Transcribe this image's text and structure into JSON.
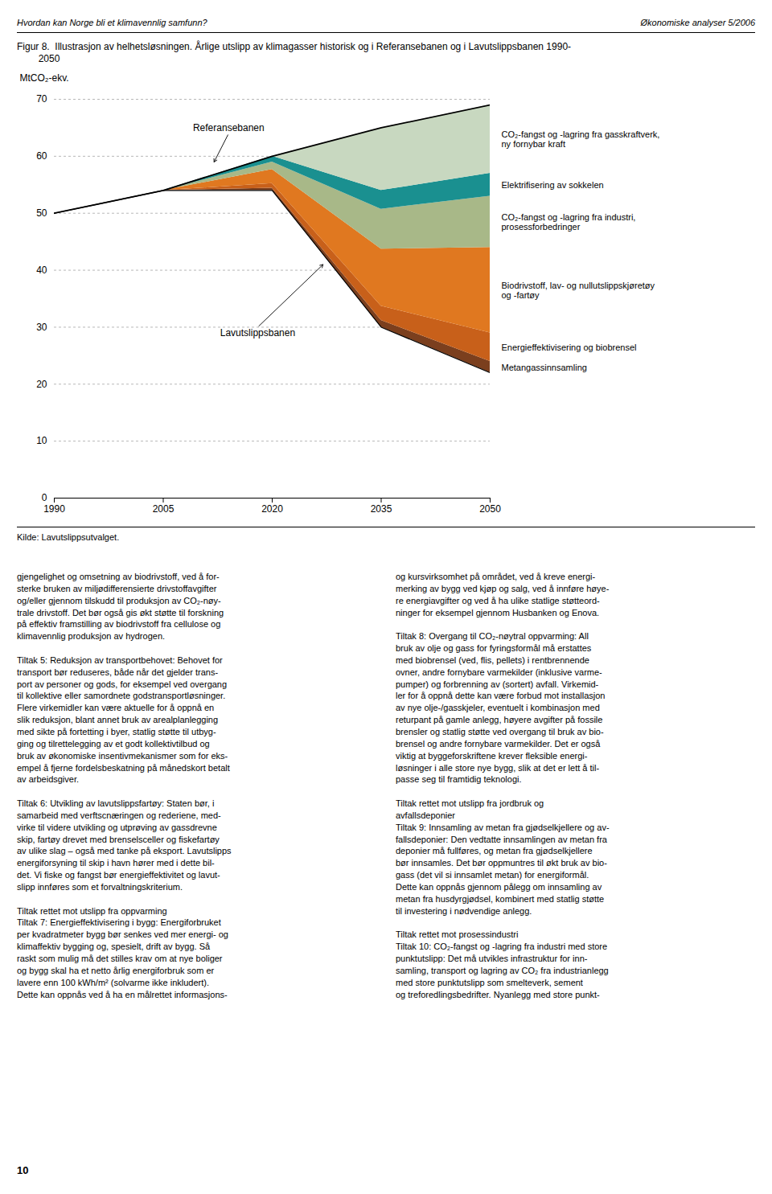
{
  "header_left": "Hvordan kan Norge bli et klimavennlig samfunn?",
  "header_right": "Økonomiske analyser 5/2006",
  "source": "Kilde: Lavutslippsutvalget.",
  "page_number": "10",
  "body_left_col": "gjengelighet og omsetning av biodrivstoff, ved å for-\nsterke bruken av miljødifferensierte drivstoffavgifter\nog/eller gjennom tilskudd til produksjon av CO₂-nøy-\ntrale drivstoff. Det bør også gis økt støtte til forskning\npå effektiv framstilling av biodrivstoff fra cellulose og\nklimavennlig produksjon av hydrogen.\n\nTiltak 5: Reduksjon av transportbehovet: Behovet for\ntransport bør reduseres, både når det gjelder trans-\nport av personer og gods, for eksempel ved overgang\ntil kollektive eller samordnete godstransportløsninger.\nFlere virkemidler kan være aktuelle for å oppnå en\nslik reduksjon, blant annet bruk av arealplanlegging\nmed sikte på fortetting i byer, statlig støtte til utbyg-\nging og tilrettelegging av et godt kollektivtilbud og\nbruk av økonomiske insentivmekanismer som for eks-\nempel å fjerne fordelsbeskatning på månedskort betalt\nav arbeidsgiver.\n\nTiltak 6: Utvikling av lavutslippsfartøy: Staten bør, i\nsamarbeid med verftscnæringen og rederiene, med-\nvirke til videre utvikling og utprøving av gassdrevne\nskip, fartøy drevet med brenselsceller og fiskefartøy\nav ulike slag – også med tanke på eksport. Lavutslipps\nenergiforsyning til skip i havn hører med i dette bil-\ndet. Vi fiske og fangst bør energieffektivitet og lavut-\nslipp innføres som et forvaltningskriterium.\n\nTiltak rettet mot utslipp fra oppvarming\nTiltak 7: Energieffektivisering i bygg: Energiforbruket\nper kvadratmeter bygg bør senkes ved mer energi- og\nklimaffektiv bygging og, spesielt, drift av bygg. Så\nraskt som mulig må det stilles krav om at nye boliger\nog bygg skal ha et netto årlig energiforbruk som er\nlavere enn 100 kWh/m² (solvarme ikke inkludert).\nDette kan oppnås ved å ha en målrettet informasjons-",
  "body_right_col": "og kursvirksomhet på området, ved å kreve energi-\nmerking av bygg ved kjøp og salg, ved å innføre høye-\nre energiavgifter og ved å ha ulike statlige støtteord-\nninger for eksempel gjennom Husbanken og Enova.\n\nTiltak 8: Overgang til CO₂-nøytral oppvarming: All\nbruk av olje og gass for fyringsformål må erstattes\nmed biobrensel (ved, flis, pellets) i rentbrennende\novner, andre fornybare varmekilder (inklusive varme-\npumper) og forbrenning av (sortert) avfall. Virkemid-\nler for å oppnå dette kan være forbud mot installasjon\nav nye olje-/gasskjeler, eventuelt i kombinasjon med\nreturpant på gamle anlegg, høyere avgifter på fossile\nbrensler og statlig støtte ved overgang til bruk av bio-\nbrensel og andre fornybare varmekilder. Det er også\nviktig at byggeforskriftene krever fleksible energi-\nløsninger i alle store nye bygg, slik at det er lett å til-\npasse seg til framtidig teknologi.\n\nTiltak rettet mot utslipp fra jordbruk og\navfallsdeponier\nTiltak 9: Innsamling av metan fra gjødselkjellere og av-\nfallsdeponier: Den vedtatte innsamlingen av metan fra\ndeponier må fullføres, og metan fra gjødselkjellere\nbør innsamles. Det bør oppmuntres til økt bruk av bio-\ngass (det vil si innsamlet metan) for energiformål.\nDette kan oppnås gjennom pålegg om innsamling av\nmetan fra husdyrgjødsel, kombinert med statlig støtte\ntil investering i nødvendige anlegg.\n\nTiltak rettet mot prosessindustri\nTiltak 10: CO₂-fangst og -lagring fra industri med store\npunktutslipp: Det må utvikles infrastruktur for inn-\nsamling, transport og lagring av CO₂ fra industrianlegg\nmed store punktutslipp som smelteverk, sement\nog treforedlingsbedrifter. Nyanlegg med store punkt-",
  "chart_data": {
    "type": "area",
    "title": "Figur 8.  Illustrasjon av helhetsløsningen. Årlige utslipp av klimagasser historisk og i Referansebanen og i Lavutslippsbanen 1990-\n        2050",
    "ylabel": "MtCO₂-ekv.",
    "x": [
      1990,
      2005,
      2020,
      2035,
      2050
    ],
    "xlim": [
      1990,
      2050
    ],
    "xticks": [
      1990,
      2005,
      2020,
      2035,
      2050
    ],
    "ylim": [
      0,
      70
    ],
    "yticks": [
      0,
      10,
      20,
      30,
      40,
      50,
      60,
      70
    ],
    "grid": true,
    "stacked": true,
    "series": [
      {
        "name": "Referansebanen",
        "type": "line",
        "color": "black",
        "line_style": "solid",
        "values": [
          50,
          54,
          60,
          65,
          69
        ]
      },
      {
        "name": "Lavutslippsbanen",
        "type": "line",
        "color": "black",
        "line_style": "solid",
        "values": [
          50,
          54,
          54,
          30,
          22
        ]
      },
      {
        "name": "Metangassinnsamling",
        "type": "area",
        "color": "#7B3F1E",
        "values": [
          0,
          0,
          0.4,
          1.2,
          2.0
        ]
      },
      {
        "name": "Energieffektivisering og biobrensel",
        "type": "area",
        "color": "#C8601A",
        "values": [
          0,
          0,
          0.8,
          2.5,
          5.0
        ]
      },
      {
        "name": "Biodrivstoff, lav- og nullutslippskjøretøy\nog -fartøy",
        "type": "area",
        "color": "#E07820",
        "values": [
          0,
          0,
          2.5,
          10.0,
          15.0
        ]
      },
      {
        "name": "CO₂-fangst og -lagring fra industri,\nprosessforbedringer",
        "type": "area",
        "color": "#A8B888",
        "values": [
          0,
          0,
          1.3,
          7.0,
          9.0
        ]
      },
      {
        "name": "Elektrifisering av sokkelen",
        "type": "area",
        "color": "#1A9090",
        "values": [
          0,
          0,
          1.0,
          3.3,
          4.0
        ]
      },
      {
        "name": "CO₂-fangst og -lagring fra gasskraftverk,\nny fornybar kraft",
        "type": "area",
        "color": "#C8D8C0",
        "values": [
          0,
          0,
          0,
          11.0,
          12.0
        ]
      }
    ],
    "annotations": [
      {
        "text": "Referansebanen",
        "x": 2012,
        "y": 59,
        "text_x": 2014,
        "text_y": 64
      },
      {
        "text": "Lavutslippsbanen",
        "x": 2027,
        "y": 41,
        "text_x": 2018,
        "text_y": 30
      }
    ]
  }
}
